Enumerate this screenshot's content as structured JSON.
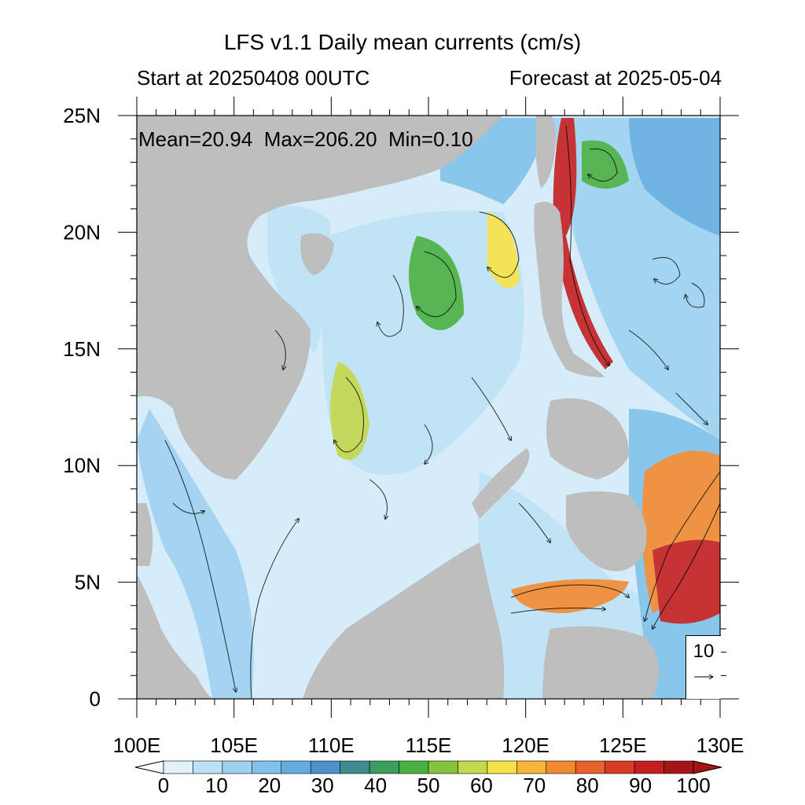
{
  "header": {
    "title": "LFS v1.1 Daily mean currents (cm/s)",
    "start": "Start at 20250408 00UTC",
    "forecast": "Forecast at 2025-05-04"
  },
  "stats": {
    "text": "Mean=20.94  Max=206.20  Min=0.10"
  },
  "reference_vector": {
    "label": "10"
  },
  "map": {
    "lon_range": [
      100,
      130
    ],
    "lat_range": [
      0,
      25
    ],
    "x_ticks": [
      "100E",
      "105E",
      "110E",
      "115E",
      "120E",
      "125E",
      "130E"
    ],
    "y_ticks": [
      "25N",
      "20N",
      "15N",
      "10N",
      "5N",
      "0"
    ],
    "land_color": "#bebebe",
    "water_color": "#d6ecf8"
  },
  "colorbar": {
    "labels": [
      "0",
      "10",
      "20",
      "30",
      "40",
      "50",
      "60",
      "70",
      "80",
      "90",
      "100"
    ],
    "colors": [
      "#e1f2fb",
      "#bfe3f6",
      "#9ed2f0",
      "#80c2ea",
      "#64aee0",
      "#4e92cb",
      "#3f8c8e",
      "#3b9f5f",
      "#4bb043",
      "#86c440",
      "#c3d84c",
      "#f6e348",
      "#f7b53c",
      "#f18a30",
      "#e8602a",
      "#d63b24",
      "#c41f1f",
      "#a51416"
    ]
  }
}
